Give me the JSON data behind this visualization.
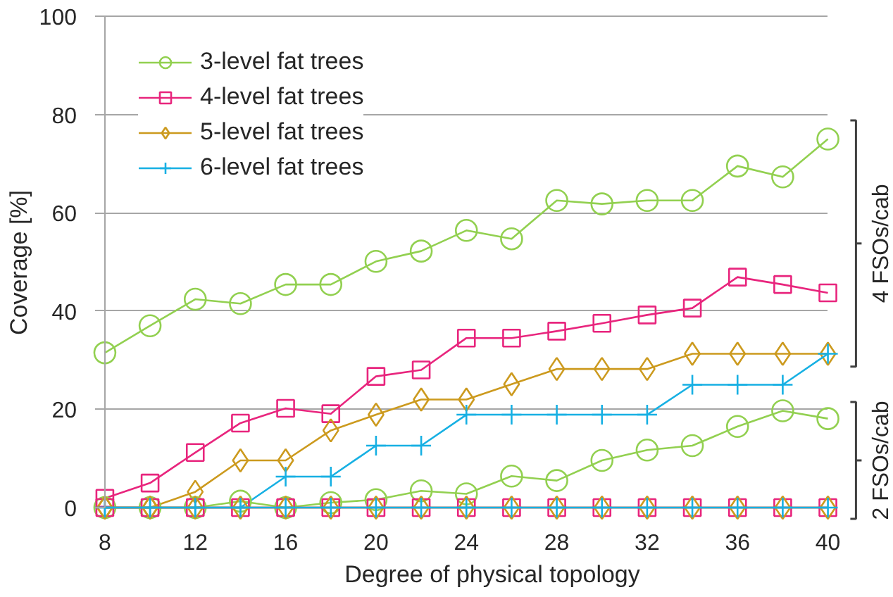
{
  "chart_data": {
    "type": "line",
    "xlabel": "Degree of physical topology",
    "ylabel": "Coverage [%]",
    "x": [
      8,
      10,
      12,
      14,
      16,
      18,
      20,
      22,
      24,
      26,
      28,
      30,
      32,
      34,
      36,
      38,
      40
    ],
    "xlim": [
      8,
      40
    ],
    "xticks": [
      8,
      12,
      16,
      20,
      24,
      28,
      32,
      36,
      40
    ],
    "ylim": [
      0,
      100
    ],
    "yticks": [
      0,
      20,
      40,
      60,
      80,
      100
    ],
    "grid": "y",
    "legend": "top left",
    "series": [
      {
        "name": "3-level fat trees",
        "color": "#92d050",
        "marker": "circle",
        "values": [
          31.5,
          37.0,
          42.4,
          41.5,
          45.4,
          45.4,
          50.1,
          52.2,
          56.4,
          54.7,
          62.5,
          61.8,
          62.5,
          62.5,
          69.5,
          67.3,
          75.0
        ]
      },
      {
        "name": "4-level fat trees",
        "color": "#e8257d",
        "marker": "square",
        "values": [
          1.9,
          5.0,
          11.2,
          17.2,
          20.2,
          19.1,
          26.7,
          28.0,
          34.5,
          34.5,
          35.9,
          37.5,
          39.2,
          40.6,
          46.9,
          45.4,
          43.7
        ]
      },
      {
        "name": "5-level fat trees",
        "color": "#cc9a1e",
        "marker": "diamond",
        "values": [
          0,
          0,
          3.2,
          9.6,
          9.6,
          15.7,
          18.9,
          22.0,
          22.0,
          25.1,
          28.2,
          28.2,
          28.2,
          31.3,
          31.3,
          31.3,
          31.3
        ]
      },
      {
        "name": "6-level fat trees",
        "color": "#17b0e3",
        "marker": "cross",
        "values": [
          0,
          0,
          0,
          0,
          6.3,
          6.3,
          12.6,
          12.6,
          18.9,
          18.9,
          18.9,
          18.9,
          18.9,
          25.0,
          25.0,
          25.0,
          31.3
        ]
      },
      {
        "color": "#92d050",
        "marker": "circle",
        "values": [
          0,
          0,
          0,
          1.3,
          0,
          1.0,
          1.6,
          3.4,
          2.8,
          6.4,
          5.5,
          9.6,
          11.7,
          12.6,
          16.5,
          19.7,
          18.1
        ]
      },
      {
        "color": "#e8257d",
        "marker": "square",
        "values": [
          0,
          0,
          0,
          0,
          0,
          0,
          0,
          0,
          0,
          0,
          0,
          0,
          0,
          0,
          0,
          0,
          0
        ]
      },
      {
        "color": "#cc9a1e",
        "marker": "diamond",
        "values": [
          0,
          0,
          0,
          0,
          0,
          0,
          0,
          0,
          0,
          0,
          0,
          0,
          0,
          0,
          0,
          0,
          0
        ]
      },
      {
        "color": "#17b0e3",
        "marker": "cross",
        "values": [
          0,
          0,
          0,
          0,
          0,
          0,
          0,
          0,
          0,
          0,
          0,
          0,
          0,
          0,
          0,
          0,
          0
        ]
      }
    ],
    "annotations": [
      "4 FSOs/cab",
      "2 FSOs/cab"
    ]
  }
}
